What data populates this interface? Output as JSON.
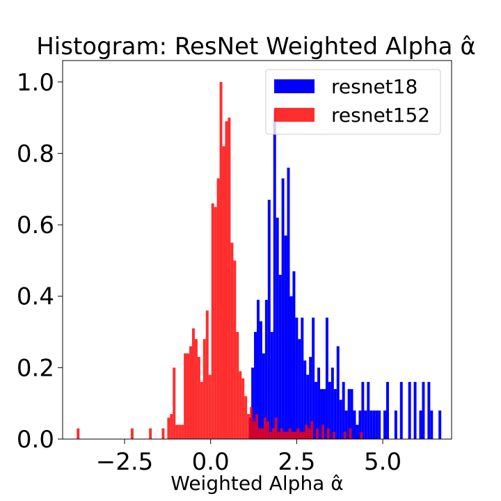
{
  "chart_data": {
    "type": "bar",
    "title": "Histogram: ResNet Weighted Alpha α̂",
    "xlabel": "Weighted Alpha α̂",
    "ylabel": "",
    "xlim": [
      -4.3,
      7.0
    ],
    "ylim": [
      0.0,
      1.06
    ],
    "xticks": [
      -2.5,
      0.0,
      2.5,
      5.0
    ],
    "xtick_labels": [
      "−2.5",
      "0.0",
      "2.5",
      "5.0"
    ],
    "yticks": [
      0.0,
      0.2,
      0.4,
      0.6,
      0.8,
      1.0
    ],
    "ytick_labels": [
      "0.0",
      "0.2",
      "0.4",
      "0.6",
      "0.8",
      "1.0"
    ],
    "grid": false,
    "legend_position": "top-right",
    "bin_width": 0.08,
    "series": [
      {
        "name": "resnet18",
        "color": "#0000ff",
        "points": [
          [
            1.15,
            0.06
          ],
          [
            1.22,
            0.2
          ],
          [
            1.3,
            0.3
          ],
          [
            1.38,
            0.39
          ],
          [
            1.46,
            0.33
          ],
          [
            1.54,
            0.24
          ],
          [
            1.62,
            0.39
          ],
          [
            1.7,
            0.67
          ],
          [
            1.78,
            0.3
          ],
          [
            1.86,
            0.92
          ],
          [
            1.94,
            0.62
          ],
          [
            2.02,
            0.46
          ],
          [
            2.1,
            0.73
          ],
          [
            2.18,
            0.57
          ],
          [
            2.26,
            0.76
          ],
          [
            2.34,
            0.4
          ],
          [
            2.42,
            0.47
          ],
          [
            2.5,
            0.34
          ],
          [
            2.58,
            0.28
          ],
          [
            2.66,
            0.34
          ],
          [
            2.74,
            0.22
          ],
          [
            2.82,
            0.18
          ],
          [
            2.9,
            0.23
          ],
          [
            2.98,
            0.34
          ],
          [
            3.06,
            0.16
          ],
          [
            3.14,
            0.2
          ],
          [
            3.22,
            0.14
          ],
          [
            3.3,
            0.14
          ],
          [
            3.38,
            0.34
          ],
          [
            3.46,
            0.16
          ],
          [
            3.54,
            0.2
          ],
          [
            3.62,
            0.14
          ],
          [
            3.7,
            0.26
          ],
          [
            3.78,
            0.11
          ],
          [
            3.86,
            0.16
          ],
          [
            3.94,
            0.08
          ],
          [
            4.02,
            0.14
          ],
          [
            4.1,
            0.14
          ],
          [
            4.18,
            0.08
          ],
          [
            4.26,
            0.04
          ],
          [
            4.34,
            0.08
          ],
          [
            4.42,
            0.16
          ],
          [
            4.5,
            0.08
          ],
          [
            4.58,
            0.16
          ],
          [
            4.66,
            0.08
          ],
          [
            4.74,
            0.08
          ],
          [
            4.82,
            0.08
          ],
          [
            4.9,
            0.08
          ],
          [
            5.06,
            0.08
          ],
          [
            5.14,
            0.16
          ],
          [
            5.38,
            0.08
          ],
          [
            5.54,
            0.16
          ],
          [
            5.78,
            0.16
          ],
          [
            5.94,
            0.16
          ],
          [
            6.1,
            0.08
          ],
          [
            6.18,
            0.16
          ],
          [
            6.34,
            0.16
          ],
          [
            6.42,
            0.08
          ],
          [
            6.66,
            0.08
          ]
        ]
      },
      {
        "name": "resnet152",
        "color": "#ff0000",
        "opacity": 0.82,
        "points": [
          [
            -3.85,
            0.03
          ],
          [
            -2.28,
            0.03
          ],
          [
            -1.75,
            0.03
          ],
          [
            -1.38,
            0.03
          ],
          [
            -1.22,
            0.06
          ],
          [
            -1.14,
            0.07
          ],
          [
            -1.06,
            0.2
          ],
          [
            -0.98,
            0.04
          ],
          [
            -0.9,
            0.04
          ],
          [
            -0.82,
            0.04
          ],
          [
            -0.74,
            0.24
          ],
          [
            -0.66,
            0.24
          ],
          [
            -0.58,
            0.26
          ],
          [
            -0.5,
            0.31
          ],
          [
            -0.42,
            0.28
          ],
          [
            -0.34,
            0.23
          ],
          [
            -0.26,
            0.16
          ],
          [
            -0.18,
            0.28
          ],
          [
            -0.1,
            0.36
          ],
          [
            -0.02,
            0.18
          ],
          [
            0.06,
            0.66
          ],
          [
            0.14,
            0.65
          ],
          [
            0.22,
            0.73
          ],
          [
            0.3,
            1.0
          ],
          [
            0.38,
            0.82
          ],
          [
            0.46,
            0.89
          ],
          [
            0.54,
            0.9
          ],
          [
            0.62,
            0.55
          ],
          [
            0.7,
            0.5
          ],
          [
            0.78,
            0.3
          ],
          [
            0.86,
            0.19
          ],
          [
            0.94,
            0.17
          ],
          [
            1.02,
            0.12
          ],
          [
            1.1,
            0.07
          ],
          [
            1.18,
            0.09
          ],
          [
            1.26,
            0.05
          ],
          [
            1.34,
            0.07
          ],
          [
            1.42,
            0.03
          ],
          [
            1.5,
            0.03
          ],
          [
            1.58,
            0.06
          ],
          [
            1.66,
            0.05
          ],
          [
            1.74,
            0.02
          ],
          [
            1.82,
            0.03
          ],
          [
            1.9,
            0.06
          ],
          [
            1.98,
            0.02
          ],
          [
            2.06,
            0.03
          ],
          [
            2.14,
            0.02
          ],
          [
            2.22,
            0.02
          ],
          [
            2.3,
            0.03
          ],
          [
            2.38,
            0.02
          ],
          [
            2.46,
            0.02
          ],
          [
            2.54,
            0.03
          ],
          [
            2.62,
            0.02
          ],
          [
            2.7,
            0.02
          ],
          [
            2.78,
            0.04
          ],
          [
            2.86,
            0.03
          ],
          [
            2.94,
            0.05
          ],
          [
            3.1,
            0.03
          ],
          [
            3.26,
            0.04
          ],
          [
            3.42,
            0.03
          ],
          [
            3.58,
            0.02
          ],
          [
            3.9,
            0.02
          ],
          [
            4.06,
            0.03
          ],
          [
            4.38,
            0.02
          ]
        ]
      }
    ]
  }
}
